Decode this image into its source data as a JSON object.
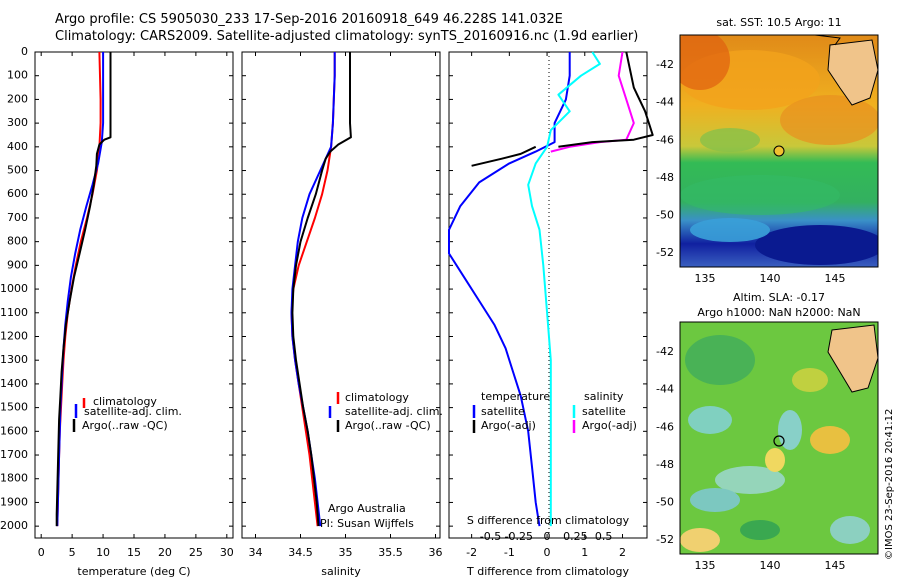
{
  "header": {
    "line1": "Argo profile: CS 5905030_233 17-Sep-2016 20160918_649 46.228S 141.032E",
    "line2": "Climatology: CARS2009. Satellite-adjusted climatology: synTS_20160916.nc (1.9d earlier)"
  },
  "colors": {
    "climatology": "#ff0000",
    "satellite": "#0000ff",
    "argo": "#000000",
    "sal_satellite": "#00ffff",
    "sal_argo": "#ff00ff"
  },
  "chart_data": [
    {
      "type": "line",
      "id": "temperature",
      "xlabel": "temperature (deg C)",
      "ylim": [
        2050,
        0
      ],
      "xlim": [
        -1,
        31
      ],
      "xticks": [
        "0",
        "5",
        "10",
        "15",
        "20",
        "25",
        "30"
      ],
      "yticks": [
        "0",
        "100",
        "200",
        "300",
        "400",
        "500",
        "600",
        "700",
        "800",
        "900",
        "1000",
        "1100",
        "1200",
        "1300",
        "1400",
        "1500",
        "1600",
        "1700",
        "1800",
        "1900",
        "2000"
      ],
      "legend": [
        "climatology",
        "satellite-adj. clim.",
        "Argo(..raw -QC)"
      ],
      "series": [
        {
          "name": "climatology",
          "color_key": "climatology",
          "points": [
            [
              9.4,
              0
            ],
            [
              9.5,
              100
            ],
            [
              9.6,
              200
            ],
            [
              9.6,
              300
            ],
            [
              9.4,
              400
            ],
            [
              9.0,
              500
            ],
            [
              8.3,
              600
            ],
            [
              7.4,
              700
            ],
            [
              6.4,
              800
            ],
            [
              5.6,
              900
            ],
            [
              4.9,
              1000
            ],
            [
              4.3,
              1100
            ],
            [
              3.9,
              1200
            ],
            [
              3.6,
              1300
            ],
            [
              3.4,
              1400
            ],
            [
              3.2,
              1500
            ],
            [
              3.0,
              1600
            ],
            [
              2.9,
              1700
            ],
            [
              2.8,
              1800
            ],
            [
              2.7,
              1900
            ],
            [
              2.6,
              2000
            ]
          ]
        },
        {
          "name": "satellite-adj. clim.",
          "color_key": "satellite",
          "points": [
            [
              10.0,
              0
            ],
            [
              10.0,
              100
            ],
            [
              10.0,
              200
            ],
            [
              10.0,
              300
            ],
            [
              9.8,
              380
            ],
            [
              9.2,
              470
            ],
            [
              8.3,
              560
            ],
            [
              7.3,
              650
            ],
            [
              6.3,
              750
            ],
            [
              5.5,
              850
            ],
            [
              4.8,
              950
            ],
            [
              4.3,
              1050
            ],
            [
              3.9,
              1150
            ],
            [
              3.6,
              1250
            ],
            [
              3.4,
              1350
            ],
            [
              3.2,
              1450
            ],
            [
              3.1,
              1500
            ],
            [
              3.0,
              1600
            ],
            [
              2.9,
              1700
            ],
            [
              2.8,
              1800
            ],
            [
              2.7,
              1900
            ],
            [
              2.6,
              2000
            ]
          ]
        },
        {
          "name": "Argo(..raw -QC)",
          "color_key": "argo",
          "points": [
            [
              11.2,
              0
            ],
            [
              11.2,
              100
            ],
            [
              11.2,
              200
            ],
            [
              11.2,
              300
            ],
            [
              11.2,
              360
            ],
            [
              10.2,
              370
            ],
            [
              9.4,
              390
            ],
            [
              9.0,
              430
            ],
            [
              8.9,
              480
            ],
            [
              8.5,
              560
            ],
            [
              7.9,
              650
            ],
            [
              7.1,
              750
            ],
            [
              6.2,
              850
            ],
            [
              5.3,
              950
            ],
            [
              4.6,
              1050
            ],
            [
              4.0,
              1150
            ],
            [
              3.6,
              1250
            ],
            [
              3.3,
              1350
            ],
            [
              3.1,
              1450
            ],
            [
              2.9,
              1550
            ],
            [
              2.8,
              1650
            ],
            [
              2.7,
              1750
            ],
            [
              2.6,
              1850
            ],
            [
              2.5,
              1950
            ],
            [
              2.5,
              2000
            ]
          ]
        }
      ]
    },
    {
      "type": "line",
      "id": "salinity",
      "xlabel": "salinity",
      "ylim": [
        2050,
        0
      ],
      "xlim": [
        33.85,
        36.05
      ],
      "xticks": [
        "34",
        "34.5",
        "35",
        "35.5",
        "36"
      ],
      "legend": [
        "climatology",
        "satellite-adj. clim.",
        "Argo(..raw -QC)"
      ],
      "annotations": [
        "Argo Australia",
        "PI: Susan Wijffels"
      ],
      "series": [
        {
          "name": "climatology",
          "color_key": "climatology",
          "points": [
            [
              34.88,
              0
            ],
            [
              34.88,
              100
            ],
            [
              34.87,
              200
            ],
            [
              34.86,
              300
            ],
            [
              34.84,
              400
            ],
            [
              34.8,
              500
            ],
            [
              34.74,
              600
            ],
            [
              34.66,
              700
            ],
            [
              34.57,
              800
            ],
            [
              34.48,
              900
            ],
            [
              34.42,
              1000
            ],
            [
              34.4,
              1100
            ],
            [
              34.41,
              1200
            ],
            [
              34.44,
              1300
            ],
            [
              34.48,
              1400
            ],
            [
              34.52,
              1500
            ],
            [
              34.56,
              1600
            ],
            [
              34.6,
              1700
            ],
            [
              34.63,
              1800
            ],
            [
              34.66,
              1900
            ],
            [
              34.69,
              2000
            ]
          ]
        },
        {
          "name": "satellite-adj. clim.",
          "color_key": "satellite",
          "points": [
            [
              34.88,
              0
            ],
            [
              34.88,
              100
            ],
            [
              34.87,
              200
            ],
            [
              34.86,
              300
            ],
            [
              34.84,
              400
            ],
            [
              34.72,
              500
            ],
            [
              34.6,
              600
            ],
            [
              34.52,
              700
            ],
            [
              34.47,
              800
            ],
            [
              34.44,
              900
            ],
            [
              34.41,
              1000
            ],
            [
              34.4,
              1100
            ],
            [
              34.41,
              1200
            ],
            [
              34.44,
              1300
            ],
            [
              34.48,
              1400
            ],
            [
              34.53,
              1500
            ],
            [
              34.58,
              1600
            ],
            [
              34.62,
              1700
            ],
            [
              34.66,
              1800
            ],
            [
              34.69,
              1900
            ],
            [
              34.72,
              2000
            ]
          ]
        },
        {
          "name": "Argo(..raw -QC)",
          "color_key": "argo",
          "points": [
            [
              35.05,
              0
            ],
            [
              35.05,
              100
            ],
            [
              35.05,
              200
            ],
            [
              35.05,
              300
            ],
            [
              35.06,
              360
            ],
            [
              34.92,
              390
            ],
            [
              34.83,
              420
            ],
            [
              34.78,
              450
            ],
            [
              34.74,
              500
            ],
            [
              34.67,
              600
            ],
            [
              34.58,
              700
            ],
            [
              34.5,
              800
            ],
            [
              34.45,
              900
            ],
            [
              34.42,
              1000
            ],
            [
              34.41,
              1100
            ],
            [
              34.42,
              1200
            ],
            [
              34.45,
              1300
            ],
            [
              34.49,
              1400
            ],
            [
              34.53,
              1500
            ],
            [
              34.58,
              1600
            ],
            [
              34.62,
              1700
            ],
            [
              34.65,
              1800
            ],
            [
              34.68,
              1900
            ],
            [
              34.7,
              2000
            ]
          ]
        }
      ]
    },
    {
      "type": "line",
      "id": "difference",
      "xlabel": "T difference from climatology",
      "xlabel_top": "S difference from climatology",
      "ylim": [
        2050,
        0
      ],
      "xlim": [
        -2.6,
        2.65
      ],
      "xticks": [
        "-2",
        "-1",
        "0",
        "1",
        "2"
      ],
      "sticks": [
        "-0.5",
        "-0.25",
        "0",
        "0.25",
        "0.5"
      ],
      "legend_headers": [
        "temperature",
        "salinity"
      ],
      "legend": [
        "satellite",
        "Argo(-adj)",
        "satellite",
        "Argo(-adj)"
      ],
      "series": [
        {
          "name": "temperature satellite",
          "color_key": "satellite",
          "points": [
            [
              0.6,
              0
            ],
            [
              0.6,
              100
            ],
            [
              0.5,
              200
            ],
            [
              0.2,
              300
            ],
            [
              0.2,
              380
            ],
            [
              -0.3,
              420
            ],
            [
              -1.0,
              470
            ],
            [
              -1.8,
              550
            ],
            [
              -2.3,
              650
            ],
            [
              -2.6,
              750
            ],
            [
              -2.6,
              850
            ],
            [
              -2.2,
              950
            ],
            [
              -1.8,
              1050
            ],
            [
              -1.4,
              1150
            ],
            [
              -1.1,
              1250
            ],
            [
              -0.9,
              1350
            ],
            [
              -0.7,
              1450
            ],
            [
              -0.5,
              1600
            ],
            [
              -0.4,
              1750
            ],
            [
              -0.3,
              1900
            ],
            [
              -0.2,
              2000
            ]
          ]
        },
        {
          "name": "temperature Argo(-adj)",
          "color_key": "argo",
          "points": [
            [
              -2.0,
              480
            ],
            [
              -1.2,
              450
            ],
            [
              -0.7,
              430
            ],
            [
              -0.3,
              400
            ]
          ]
        },
        {
          "name": "salinity satellite",
          "color_key": "sal_satellite",
          "points": [
            [
              1.2,
              0
            ],
            [
              1.4,
              50
            ],
            [
              0.9,
              100
            ],
            [
              0.3,
              180
            ],
            [
              0.6,
              250
            ],
            [
              0.1,
              330
            ],
            [
              0.0,
              400
            ],
            [
              -0.3,
              470
            ],
            [
              -0.5,
              560
            ],
            [
              -0.4,
              650
            ],
            [
              -0.2,
              750
            ],
            [
              -0.1,
              900
            ],
            [
              0.0,
              1100
            ],
            [
              0.1,
              1300
            ],
            [
              0.1,
              1500
            ],
            [
              0.1,
              1700
            ],
            [
              0.1,
              1900
            ],
            [
              0.1,
              2000
            ]
          ]
        },
        {
          "name": "salinity Argo(-adj)",
          "color_key": "sal_argo",
          "points": [
            [
              2.0,
              0
            ],
            [
              1.9,
              100
            ],
            [
              2.1,
              200
            ],
            [
              2.3,
              300
            ],
            [
              2.1,
              370
            ],
            [
              1.4,
              380
            ],
            [
              0.6,
              400
            ],
            [
              0.1,
              420
            ]
          ]
        },
        {
          "name": "temperature Argo(-adj) upper",
          "color_key": "argo",
          "points": [
            [
              2.1,
              0
            ],
            [
              2.3,
              150
            ],
            [
              2.6,
              250
            ],
            [
              2.8,
              350
            ],
            [
              2.3,
              370
            ],
            [
              1.2,
              380
            ],
            [
              0.3,
              400
            ]
          ]
        }
      ]
    },
    {
      "type": "heatmap",
      "id": "sst_map",
      "title": "sat. SST: 10.5 Argo: 11",
      "xticks": [
        "135",
        "140",
        "145"
      ],
      "yticks": [
        "-42",
        "-44",
        "-46",
        "-48",
        "-50",
        "-52"
      ],
      "marker": {
        "lon": 141.03,
        "lat": -46.23
      }
    },
    {
      "type": "heatmap",
      "id": "sla_map",
      "title_line1": "Altim. SLA: -0.17",
      "title_line2": "Argo h1000: NaN h2000: NaN",
      "xticks": [
        "135",
        "140",
        "145"
      ],
      "yticks": [
        "-42",
        "-44",
        "-46",
        "-48",
        "-50",
        "-52"
      ],
      "marker": {
        "lon": 141.03,
        "lat": -46.23
      }
    }
  ],
  "stamp": "©IMOS 23-Sep-2016 20:41:12"
}
